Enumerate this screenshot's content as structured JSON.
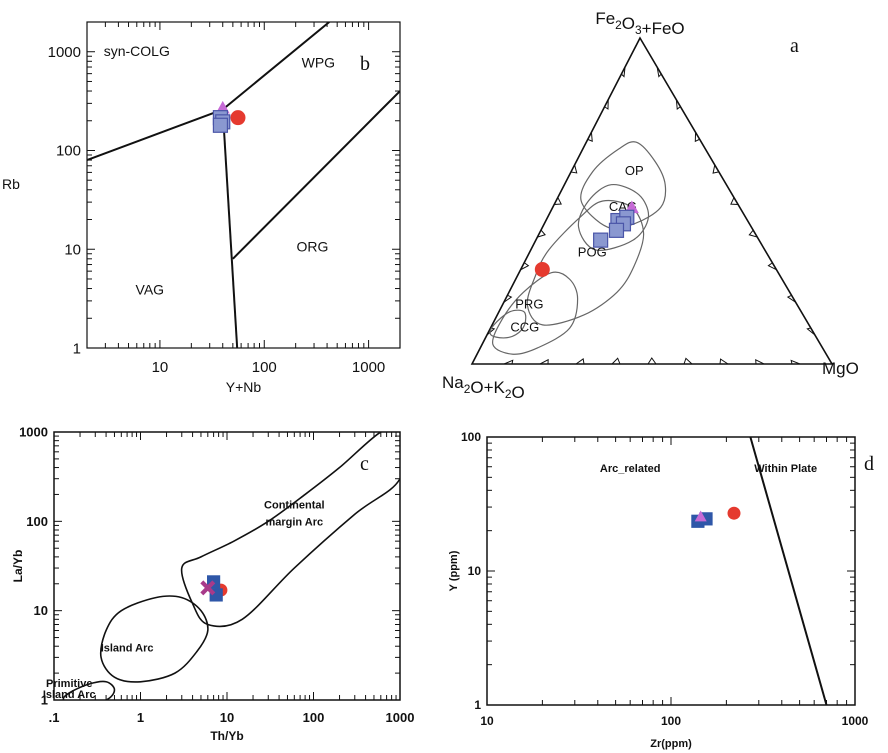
{
  "colors": {
    "red_circle": "#e53a2f",
    "square_fill": "#8a98d0",
    "square_stroke": "#4a55a8",
    "triangle": "#c66ad6",
    "c_square": "#2f57a8",
    "c_cross": "#a83a8a",
    "line": "#111111",
    "field": "#666666"
  },
  "chart_data": [
    {
      "id": "b",
      "type": "scatter",
      "panel_letter": "b",
      "title": "",
      "xlabel": "Y+Nb",
      "ylabel": "Rb",
      "xscale": "log",
      "yscale": "log",
      "xlim": [
        2,
        2000
      ],
      "ylim": [
        1,
        2000
      ],
      "xticklabels": [
        {
          "v": 10,
          "t": "10"
        },
        {
          "v": 100,
          "t": "100"
        },
        {
          "v": 1000,
          "t": "1000"
        }
      ],
      "yticklabels": [
        {
          "v": 1,
          "t": "1"
        },
        {
          "v": 10,
          "t": "10"
        },
        {
          "v": 100,
          "t": "100"
        },
        {
          "v": 1000,
          "t": "1000"
        }
      ],
      "field_labels": [
        {
          "text": "syn-COLG",
          "x": 6,
          "y": 900
        },
        {
          "text": "WPG",
          "x": 330,
          "y": 690
        },
        {
          "text": "ORG",
          "x": 290,
          "y": 9.5
        },
        {
          "text": "VAG",
          "x": 8,
          "y": 3.5
        }
      ],
      "boundaries": [
        [
          [
            2,
            80
          ],
          [
            40,
            260
          ]
        ],
        [
          [
            40,
            260
          ],
          [
            55,
            1
          ]
        ],
        [
          [
            40,
            260
          ],
          [
            420,
            2000
          ]
        ],
        [
          [
            50,
            8
          ],
          [
            2000,
            400
          ]
        ]
      ],
      "points": [
        {
          "marker": "triangle",
          "x": 40,
          "y": 270
        },
        {
          "marker": "square",
          "x": 38,
          "y": 215
        },
        {
          "marker": "square",
          "x": 40,
          "y": 195
        },
        {
          "marker": "square",
          "x": 38,
          "y": 180
        },
        {
          "marker": "circle",
          "x": 56,
          "y": 215
        }
      ]
    },
    {
      "id": "a",
      "type": "scatter",
      "subtype": "ternary",
      "panel_letter": "a",
      "apex_top": "Fe2O3+FeO",
      "apex_left": "Na2O+K2O",
      "apex_right": "MgO",
      "field_labels": [
        {
          "text": "OP",
          "top": 0.58,
          "right": 0.18
        },
        {
          "text": "CAG",
          "top": 0.47,
          "right": 0.2
        },
        {
          "text": "POG",
          "top": 0.33,
          "right": 0.18
        },
        {
          "text": "PRG",
          "top": 0.17,
          "right": 0.08
        },
        {
          "text": "CCG",
          "top": 0.1,
          "right": 0.1
        }
      ],
      "fields": [
        {
          "name": "OP",
          "pts": [
            [
              0.42,
              0.18
            ],
            [
              0.5,
              0.07
            ],
            [
              0.59,
              0.06
            ],
            [
              0.66,
              0.1
            ],
            [
              0.68,
              0.14
            ],
            [
              0.62,
              0.22
            ],
            [
              0.55,
              0.28
            ],
            [
              0.48,
              0.3
            ],
            [
              0.43,
              0.25
            ]
          ]
        },
        {
          "name": "CAG",
          "pts": [
            [
              0.35,
              0.18
            ],
            [
              0.42,
              0.1
            ],
            [
              0.5,
              0.09
            ],
            [
              0.55,
              0.13
            ],
            [
              0.52,
              0.22
            ],
            [
              0.45,
              0.28
            ],
            [
              0.38,
              0.27
            ]
          ]
        },
        {
          "name": "POG",
          "pts": [
            [
              0.12,
              0.14
            ],
            [
              0.18,
              0.07
            ],
            [
              0.27,
              0.05
            ],
            [
              0.35,
              0.05
            ],
            [
              0.45,
              0.09
            ],
            [
              0.5,
              0.13
            ],
            [
              0.48,
              0.22
            ],
            [
              0.4,
              0.29
            ],
            [
              0.3,
              0.31
            ],
            [
              0.22,
              0.3
            ],
            [
              0.15,
              0.24
            ]
          ]
        },
        {
          "name": "PRG",
          "pts": [
            [
              0.03,
              0.1
            ],
            [
              0.06,
              0.03
            ],
            [
              0.14,
              0.02
            ],
            [
              0.22,
              0.04
            ],
            [
              0.28,
              0.09
            ],
            [
              0.26,
              0.15
            ],
            [
              0.2,
              0.2
            ],
            [
              0.11,
              0.22
            ],
            [
              0.05,
              0.16
            ]
          ]
        },
        {
          "name": "CCG",
          "pts": [
            [
              0.08,
              0.05
            ],
            [
              0.09,
              0.01
            ],
            [
              0.12,
              0.005
            ],
            [
              0.16,
              0.03
            ],
            [
              0.16,
              0.07
            ],
            [
              0.12,
              0.09
            ],
            [
              0.09,
              0.08
            ]
          ]
        }
      ],
      "points": [
        {
          "marker": "circle",
          "top": 0.29,
          "right": 0.06
        },
        {
          "marker": "triangle",
          "top": 0.48,
          "right": 0.22
        },
        {
          "marker": "square",
          "top": 0.44,
          "right": 0.2
        },
        {
          "marker": "square",
          "top": 0.45,
          "right": 0.22
        },
        {
          "marker": "square",
          "top": 0.43,
          "right": 0.22
        },
        {
          "marker": "square",
          "top": 0.41,
          "right": 0.21
        },
        {
          "marker": "square",
          "top": 0.38,
          "right": 0.18
        }
      ]
    },
    {
      "id": "c",
      "type": "scatter",
      "panel_letter": "c",
      "title": "",
      "xlabel": "Th/Yb",
      "ylabel": "La/Yb",
      "xscale": "log",
      "yscale": "log",
      "xlim": [
        0.1,
        1000
      ],
      "ylim": [
        1,
        1000
      ],
      "xticklabels": [
        {
          "v": 0.1,
          "t": ".1"
        },
        {
          "v": 1,
          "t": "1"
        },
        {
          "v": 10,
          "t": "10"
        },
        {
          "v": 100,
          "t": "100"
        },
        {
          "v": 1000,
          "t": "1000"
        }
      ],
      "yticklabels": [
        {
          "v": 1,
          "t": "1"
        },
        {
          "v": 10,
          "t": "10"
        },
        {
          "v": 100,
          "t": "100"
        },
        {
          "v": 1000,
          "t": "1000"
        }
      ],
      "field_labels": [
        {
          "text": "Continental",
          "x": 60,
          "y": 140
        },
        {
          "text": "margin Arc",
          "x": 60,
          "y": 90
        },
        {
          "text": "Island Arc",
          "x": 0.7,
          "y": 3.5
        },
        {
          "text": "Primitive",
          "x": 0.15,
          "y": 1.4
        },
        {
          "text": "Island Arc",
          "x": 0.15,
          "y": 1.05
        }
      ],
      "fields": [
        {
          "name": "Continental margin Arc",
          "pts": [
            [
              3,
              30
            ],
            [
              4,
              12
            ],
            [
              6,
              7
            ],
            [
              15,
              8
            ],
            [
              60,
              30
            ],
            [
              300,
              120
            ],
            [
              1000,
              300
            ],
            [
              1000,
              1000
            ],
            [
              600,
              1000
            ],
            [
              200,
              400
            ],
            [
              80,
              200
            ],
            [
              30,
              100
            ],
            [
              12,
              60
            ],
            [
              5,
              40
            ]
          ]
        },
        {
          "name": "Island Arc",
          "pts": [
            [
              0.35,
              3
            ],
            [
              0.5,
              1.8
            ],
            [
              1,
              1.6
            ],
            [
              2.5,
              2
            ],
            [
              4.5,
              3.5
            ],
            [
              6,
              6
            ],
            [
              5,
              10
            ],
            [
              3,
              14
            ],
            [
              1.5,
              14
            ],
            [
              0.6,
              10
            ],
            [
              0.4,
              6
            ]
          ]
        },
        {
          "name": "Primitive Island Arc",
          "pts": [
            [
              0.13,
              1
            ],
            [
              0.2,
              0.9
            ],
            [
              0.4,
              1
            ],
            [
              0.5,
              1.3
            ],
            [
              0.4,
              1.6
            ],
            [
              0.25,
              1.5
            ],
            [
              0.15,
              1.2
            ]
          ]
        }
      ],
      "points": [
        {
          "marker": "circle",
          "x": 8.5,
          "y": 17
        },
        {
          "marker": "square",
          "x": 7,
          "y": 21
        },
        {
          "marker": "square",
          "x": 7.5,
          "y": 15
        },
        {
          "marker": "cross",
          "x": 6,
          "y": 18
        }
      ]
    },
    {
      "id": "d",
      "type": "scatter",
      "panel_letter": "d",
      "title": "",
      "xlabel": "Zr(ppm)",
      "ylabel": "Y (ppm)",
      "xscale": "log",
      "yscale": "log",
      "xlim": [
        10,
        1000
      ],
      "ylim": [
        1,
        100
      ],
      "xticklabels": [
        {
          "v": 10,
          "t": "10"
        },
        {
          "v": 100,
          "t": "100"
        },
        {
          "v": 1000,
          "t": "1000"
        }
      ],
      "yticklabels": [
        {
          "v": 1,
          "t": "1"
        },
        {
          "v": 10,
          "t": "10"
        },
        {
          "v": 100,
          "t": "100"
        }
      ],
      "field_labels": [
        {
          "text": "Arc_related",
          "x": 60,
          "y": 55
        },
        {
          "text": "Within Plate",
          "x": 420,
          "y": 55
        }
      ],
      "boundaries": [
        [
          [
            270,
            100
          ],
          [
            700,
            1
          ]
        ]
      ],
      "points": [
        {
          "marker": "circle",
          "x": 220,
          "y": 27
        },
        {
          "marker": "square",
          "x": 140,
          "y": 23.5
        },
        {
          "marker": "square",
          "x": 155,
          "y": 24.5
        },
        {
          "marker": "triangle",
          "x": 145,
          "y": 25.5
        }
      ]
    }
  ]
}
